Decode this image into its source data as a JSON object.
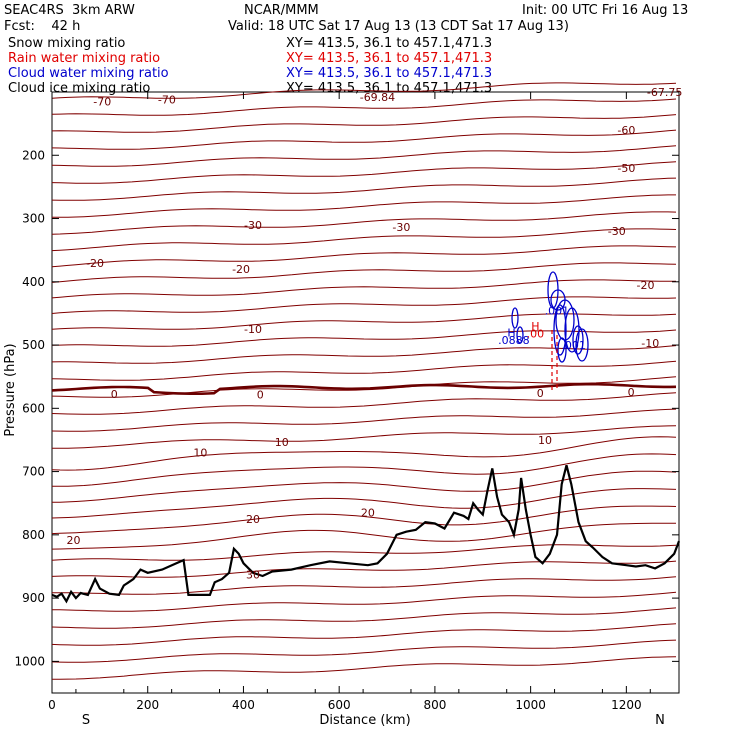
{
  "header": {
    "model": "SEAC4RS  3km ARW",
    "org": "NCAR/MMM",
    "init": "Init: 00 UTC Fri 16 Aug 13",
    "fcst": "Fcst:    42 h",
    "valid": "Valid: 18 UTC Sat 17 Aug 13 (13 CDT Sat 17 Aug 13)"
  },
  "legend": [
    {
      "name": "Snow mixing ratio",
      "xy": "XY= 413.5, 36.1 to 457.1,471.3",
      "color": "#000000"
    },
    {
      "name": "Rain water mixing ratio",
      "xy": "XY= 413.5, 36.1 to 457.1,471.3",
      "color": "#e00000"
    },
    {
      "name": "Cloud water mixing ratio",
      "xy": "XY= 413.5, 36.1 to 457.1,471.3",
      "color": "#0000cc"
    },
    {
      "name": "Cloud ice mixing ratio",
      "xy": "XY= 413.5, 36.1 to 457.1,471.3",
      "color": "#000000"
    }
  ],
  "chart_data": {
    "type": "line",
    "xlabel": "Distance (km)",
    "ylabel": "Pressure (hPa)",
    "xlim": [
      0,
      1310
    ],
    "ylim": [
      1050,
      100
    ],
    "x_ticks": [
      0,
      200,
      400,
      600,
      800,
      1000,
      1200
    ],
    "y_ticks": [
      200,
      300,
      400,
      500,
      600,
      700,
      800,
      900,
      1000
    ],
    "direction_labels": {
      "left": "S",
      "right": "N"
    },
    "temperature_color": "#800000",
    "terrain_color": "#000000",
    "isotherm_labels": [
      {
        "text": "-70",
        "x": 105,
        "p": 115
      },
      {
        "text": "-70",
        "x": 240,
        "p": 112
      },
      {
        "text": "-69.84",
        "x": 680,
        "p": 108
      },
      {
        "text": "-67.75",
        "x": 1280,
        "p": 100
      },
      {
        "text": "-60",
        "x": 1200,
        "p": 160
      },
      {
        "text": "-50",
        "x": 1200,
        "p": 220
      },
      {
        "text": "-30",
        "x": 420,
        "p": 310
      },
      {
        "text": "-30",
        "x": 730,
        "p": 313
      },
      {
        "text": "-30",
        "x": 1180,
        "p": 320
      },
      {
        "text": "-20",
        "x": 90,
        "p": 370
      },
      {
        "text": "-20",
        "x": 395,
        "p": 380
      },
      {
        "text": "-20",
        "x": 1240,
        "p": 405
      },
      {
        "text": "-10",
        "x": 420,
        "p": 475
      },
      {
        "text": "-10",
        "x": 1250,
        "p": 497
      },
      {
        "text": "0",
        "x": 130,
        "p": 577
      },
      {
        "text": "0",
        "x": 435,
        "p": 578
      },
      {
        "text": "0",
        "x": 1020,
        "p": 576
      },
      {
        "text": "0",
        "x": 1210,
        "p": 574
      },
      {
        "text": "10",
        "x": 480,
        "p": 653
      },
      {
        "text": "10",
        "x": 310,
        "p": 670
      },
      {
        "text": "10",
        "x": 1030,
        "p": 650
      },
      {
        "text": "20",
        "x": 45,
        "p": 808
      },
      {
        "text": "20",
        "x": 420,
        "p": 775
      },
      {
        "text": "20",
        "x": 660,
        "p": 765
      },
      {
        "text": "30",
        "x": 420,
        "p": 863
      }
    ],
    "cloud_water_labels": [
      {
        "text": "H",
        "x": 960,
        "p": 480
      },
      {
        "text": ".0888",
        "x": 965,
        "p": 492
      },
      {
        "text": ".001",
        "x": 1055,
        "p": 445
      },
      {
        "text": ".001",
        "x": 1090,
        "p": 500
      }
    ],
    "rain_water_labels": [
      {
        "text": "H",
        "x": 1010,
        "p": 470
      },
      {
        "text": ".00",
        "x": 1010,
        "p": 482
      }
    ],
    "terrain": [
      [
        0,
        895
      ],
      [
        10,
        898
      ],
      [
        20,
        893
      ],
      [
        30,
        905
      ],
      [
        40,
        890
      ],
      [
        50,
        900
      ],
      [
        60,
        892
      ],
      [
        75,
        895
      ],
      [
        90,
        870
      ],
      [
        100,
        885
      ],
      [
        120,
        893
      ],
      [
        140,
        895
      ],
      [
        150,
        880
      ],
      [
        170,
        870
      ],
      [
        185,
        855
      ],
      [
        200,
        860
      ],
      [
        230,
        855
      ],
      [
        260,
        845
      ],
      [
        275,
        840
      ],
      [
        285,
        895
      ],
      [
        300,
        895
      ],
      [
        330,
        895
      ],
      [
        340,
        875
      ],
      [
        355,
        870
      ],
      [
        370,
        860
      ],
      [
        380,
        822
      ],
      [
        390,
        830
      ],
      [
        400,
        845
      ],
      [
        420,
        860
      ],
      [
        440,
        865
      ],
      [
        460,
        858
      ],
      [
        500,
        855
      ],
      [
        540,
        848
      ],
      [
        580,
        842
      ],
      [
        620,
        845
      ],
      [
        660,
        848
      ],
      [
        680,
        845
      ],
      [
        700,
        830
      ],
      [
        720,
        800
      ],
      [
        740,
        795
      ],
      [
        760,
        792
      ],
      [
        780,
        780
      ],
      [
        800,
        782
      ],
      [
        820,
        790
      ],
      [
        840,
        765
      ],
      [
        860,
        770
      ],
      [
        870,
        775
      ],
      [
        880,
        750
      ],
      [
        890,
        760
      ],
      [
        900,
        768
      ],
      [
        910,
        730
      ],
      [
        920,
        695
      ],
      [
        930,
        740
      ],
      [
        940,
        768
      ],
      [
        955,
        780
      ],
      [
        965,
        800
      ],
      [
        975,
        760
      ],
      [
        980,
        710
      ],
      [
        990,
        760
      ],
      [
        1000,
        800
      ],
      [
        1010,
        835
      ],
      [
        1025,
        845
      ],
      [
        1040,
        830
      ],
      [
        1055,
        800
      ],
      [
        1065,
        720
      ],
      [
        1075,
        690
      ],
      [
        1085,
        720
      ],
      [
        1100,
        780
      ],
      [
        1115,
        810
      ],
      [
        1130,
        820
      ],
      [
        1150,
        835
      ],
      [
        1170,
        845
      ],
      [
        1200,
        848
      ],
      [
        1220,
        850
      ],
      [
        1240,
        848
      ],
      [
        1260,
        853
      ],
      [
        1280,
        845
      ],
      [
        1300,
        830
      ],
      [
        1310,
        810
      ]
    ]
  }
}
